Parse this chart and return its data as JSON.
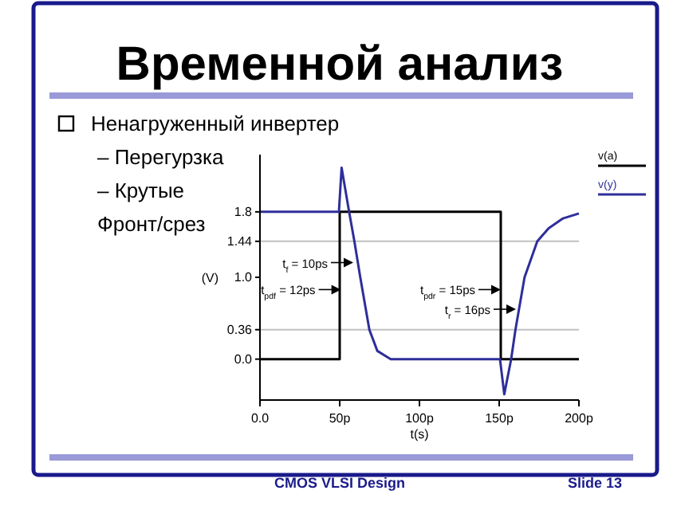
{
  "chart_data": {
    "type": "line",
    "title": "Временной анализ",
    "xlabel": "t(s)",
    "ylabel": "(V)",
    "xlim": [
      0,
      200
    ],
    "xticks": [
      {
        "value": 0,
        "label": "0.0"
      },
      {
        "value": 50,
        "label": "50p"
      },
      {
        "value": 100,
        "label": "100p"
      },
      {
        "value": 150,
        "label": "150p"
      },
      {
        "value": 200,
        "label": "200p"
      }
    ],
    "ylim": [
      -0.5,
      2.5
    ],
    "yticks": [
      {
        "value": 0,
        "label": "0.0"
      },
      0.36,
      {
        "value": 1,
        "label": "1.0"
      },
      1.44,
      1.8
    ],
    "legend": "top right",
    "grid": false,
    "marker": "none",
    "line_style": "solid",
    "ref_lines": [
      {
        "axis": "y",
        "value": 1.44,
        "color": "#c0c0c0"
      },
      {
        "axis": "y",
        "value": 0.36,
        "color": "#c0c0c0"
      }
    ],
    "series": [
      {
        "name": "v(a)",
        "color": "#000000",
        "x": [
          0,
          50,
          50,
          151,
          151,
          200
        ],
        "values": [
          0,
          0,
          1.8,
          1.8,
          0,
          0
        ]
      },
      {
        "name": "v(y)",
        "color": "#2e2e9a",
        "x": [
          0,
          49.5,
          51.2,
          55.9,
          59.2,
          62.9,
          68.6,
          73.6,
          82,
          150.5,
          153.2,
          157.5,
          160.2,
          165.9,
          173.9,
          181,
          190,
          200
        ],
        "values": [
          1.8,
          1.8,
          2.34,
          1.8,
          1.44,
          1,
          0.36,
          0.1,
          0,
          0,
          -0.43,
          0,
          0.36,
          1,
          1.44,
          1.6,
          1.72,
          1.78
        ]
      }
    ],
    "annotations": [
      {
        "text": "t$_{f}$ = 10ps",
        "x": 58.5,
        "y": 1.18
      },
      {
        "text": "t$_{pdf}$ = 12ps",
        "x": 50.8,
        "y": 0.85
      },
      {
        "text": "t$_{pdr}$ = 15ps",
        "x": 151,
        "y": 0.85
      },
      {
        "text": "t$_{r}$ = 16ps",
        "x": 160.5,
        "y": 0.61
      },
      "Ненагруженный инвертер",
      "– Перегурзка",
      "– Крутые",
      "Фронт/срез",
      "CMOS VLSI Design",
      "Slide 13"
    ]
  }
}
